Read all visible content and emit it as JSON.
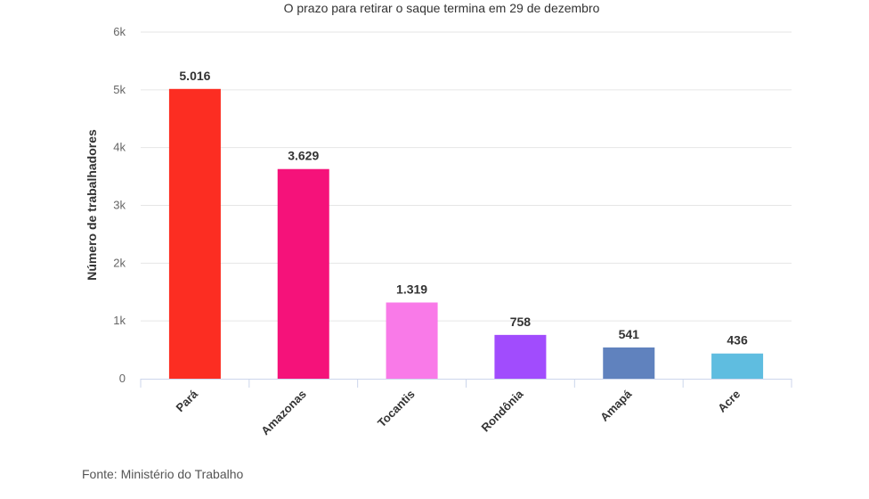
{
  "chart_data": {
    "type": "bar",
    "subtitle": "O prazo para retirar o saque termina em 29 de dezembro",
    "categories": [
      "Pará",
      "Amazonas",
      "Tocantis",
      "Rondônia",
      "Amapá",
      "Acre"
    ],
    "values": [
      5016,
      3629,
      1319,
      758,
      541,
      436
    ],
    "data_labels": [
      "5.016",
      "3.629",
      "1.319",
      "758",
      "541",
      "436"
    ],
    "colors": [
      "#fc2d22",
      "#f5127a",
      "#f97ae8",
      "#a14cfd",
      "#6082be",
      "#5fbde0"
    ],
    "ylabel": "Número de trabalhadores",
    "xlabel": "",
    "ylim": [
      0,
      6000
    ],
    "yticks": [
      "0",
      "1k",
      "2k",
      "3k",
      "4k",
      "5k",
      "6k"
    ],
    "grid": true,
    "source": "Fonte: Ministério do Trabalho"
  }
}
